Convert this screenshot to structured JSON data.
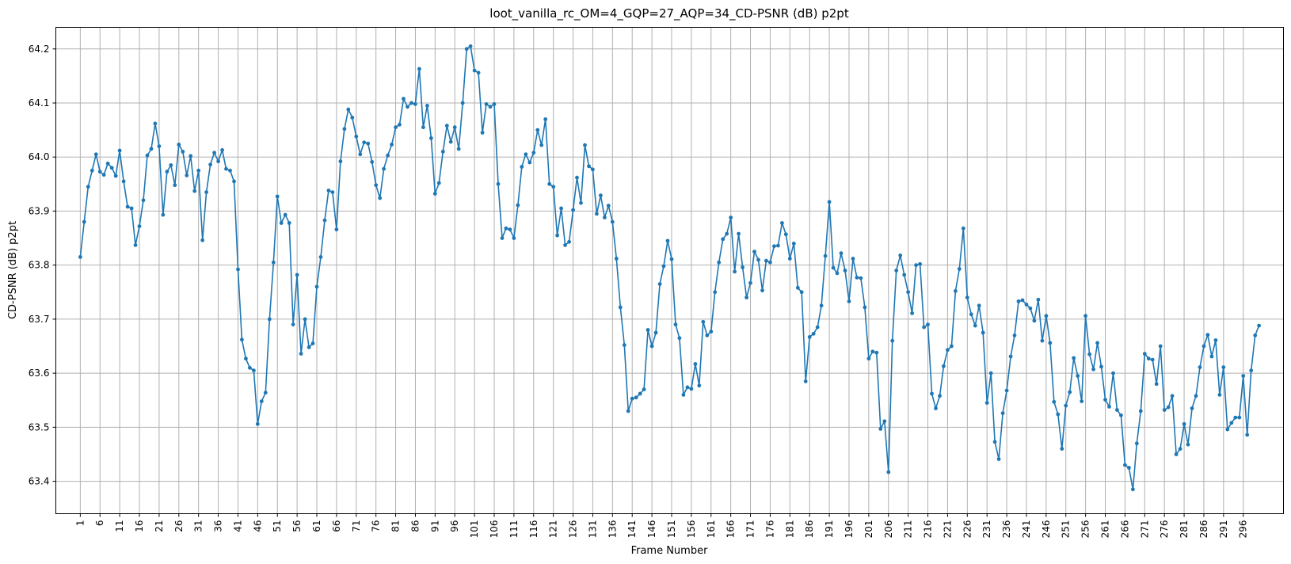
{
  "chart_data": {
    "type": "line",
    "title": "loot_vanilla_rc_OM=4_GQP=27_AQP=34_CD-PSNR (dB) p2pt",
    "xlabel": "Frame Number",
    "ylabel": "CD-PSNR (dB) p2pt",
    "xlim": [
      -5.2,
      306.2
    ],
    "ylim": [
      63.34,
      64.24
    ],
    "x_ticks": [
      1,
      6,
      11,
      16,
      21,
      26,
      31,
      36,
      41,
      46,
      51,
      56,
      61,
      66,
      71,
      76,
      81,
      86,
      91,
      96,
      101,
      106,
      111,
      116,
      121,
      126,
      131,
      136,
      141,
      146,
      151,
      156,
      161,
      166,
      171,
      176,
      181,
      186,
      191,
      196,
      201,
      206,
      211,
      216,
      221,
      226,
      231,
      236,
      241,
      246,
      251,
      256,
      261,
      266,
      271,
      276,
      281,
      286,
      291,
      296
    ],
    "y_ticks": [
      63.4,
      63.5,
      63.6,
      63.7,
      63.8,
      63.9,
      64.0,
      64.1,
      64.2
    ],
    "y_tick_labels": [
      "63.4",
      "63.5",
      "63.6",
      "63.7",
      "63.8",
      "63.9",
      "64.0",
      "64.1",
      "64.2"
    ],
    "grid": true,
    "color": "#1f77b4",
    "x_start": 1,
    "series": [
      {
        "values": [
          63.815,
          63.88,
          63.945,
          63.975,
          64.005,
          63.973,
          63.967,
          63.988,
          63.98,
          63.965,
          64.012,
          63.955,
          63.908,
          63.905,
          63.837,
          63.872,
          63.92,
          64.003,
          64.015,
          64.062,
          64.02,
          63.893,
          63.973,
          63.985,
          63.948,
          64.023,
          64.01,
          63.966,
          64.002,
          63.937,
          63.975,
          63.846,
          63.935,
          63.986,
          64.008,
          63.992,
          64.013,
          63.978,
          63.975,
          63.955,
          63.792,
          63.662,
          63.627,
          63.61,
          63.605,
          63.506,
          63.548,
          63.564,
          63.7,
          63.805,
          63.927,
          63.878,
          63.893,
          63.878,
          63.69,
          63.782,
          63.636,
          63.7,
          63.648,
          63.655,
          63.76,
          63.815,
          63.883,
          63.938,
          63.935,
          63.866,
          63.992,
          64.052,
          64.088,
          64.073,
          64.038,
          64.005,
          64.027,
          64.025,
          63.991,
          63.948,
          63.924,
          63.978,
          64.003,
          64.023,
          64.055,
          64.06,
          64.108,
          64.093,
          64.1,
          64.098,
          64.163,
          64.055,
          64.095,
          64.035,
          63.932,
          63.952,
          64.01,
          64.058,
          64.028,
          64.055,
          64.015,
          64.1,
          64.2,
          64.205,
          64.16,
          64.156,
          64.045,
          64.098,
          64.093,
          64.098,
          63.95,
          63.85,
          63.868,
          63.866,
          63.85,
          63.911,
          63.982,
          64.005,
          63.99,
          64.008,
          64.05,
          64.022,
          64.07,
          63.95,
          63.945,
          63.855,
          63.905,
          63.837,
          63.843,
          63.902,
          63.962,
          63.915,
          64.022,
          63.983,
          63.977,
          63.895,
          63.929,
          63.888,
          63.91,
          63.88,
          63.812,
          63.722,
          63.652,
          63.53,
          63.553,
          63.555,
          63.562,
          63.57,
          63.68,
          63.65,
          63.675,
          63.765,
          63.798,
          63.845,
          63.811,
          63.69,
          63.665,
          63.56,
          63.574,
          63.571,
          63.617,
          63.577,
          63.695,
          63.67,
          63.677,
          63.75,
          63.805,
          63.848,
          63.858,
          63.888,
          63.788,
          63.858,
          63.796,
          63.74,
          63.767,
          63.825,
          63.81,
          63.753,
          63.808,
          63.805,
          63.835,
          63.836,
          63.878,
          63.857,
          63.812,
          63.84,
          63.758,
          63.75,
          63.585,
          63.667,
          63.673,
          63.685,
          63.725,
          63.817,
          63.917,
          63.795,
          63.785,
          63.822,
          63.79,
          63.733,
          63.812,
          63.777,
          63.776,
          63.722,
          63.627,
          63.64,
          63.638,
          63.497,
          63.511,
          63.417,
          63.66,
          63.79,
          63.818,
          63.782,
          63.75,
          63.711,
          63.8,
          63.802,
          63.685,
          63.69,
          63.562,
          63.535,
          63.558,
          63.613,
          63.643,
          63.65,
          63.752,
          63.793,
          63.868,
          63.74,
          63.709,
          63.688,
          63.725,
          63.675,
          63.545,
          63.6,
          63.473,
          63.441,
          63.526,
          63.568,
          63.631,
          63.67,
          63.733,
          63.735,
          63.727,
          63.72,
          63.697,
          63.736,
          63.66,
          63.706,
          63.656,
          63.547,
          63.524,
          63.46,
          63.54,
          63.565,
          63.628,
          63.595,
          63.548,
          63.706,
          63.635,
          63.607,
          63.656,
          63.612,
          63.551,
          63.538,
          63.6,
          63.532,
          63.522,
          63.43,
          63.425,
          63.385,
          63.47,
          63.53,
          63.636,
          63.627,
          63.625,
          63.58,
          63.65,
          63.532,
          63.537,
          63.558,
          63.45,
          63.46,
          63.506,
          63.468,
          63.535,
          63.558,
          63.611,
          63.65,
          63.671,
          63.631,
          63.661,
          63.56,
          63.611,
          63.496,
          63.508,
          63.518,
          63.518,
          63.595,
          63.486,
          63.605,
          63.67,
          63.688
        ]
      }
    ]
  }
}
